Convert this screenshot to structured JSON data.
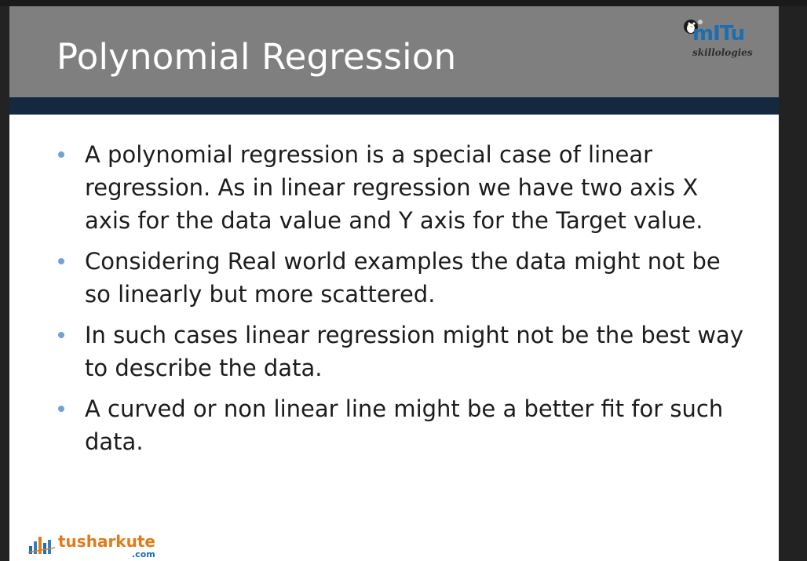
{
  "slide": {
    "title": "Polynomial Regression",
    "bullets": [
      "A polynomial regression is a special case of linear regression. As in linear regression we have two axis X axis for the data value and Y axis for the Target value.",
      "Considering Real world examples the data might not be so linearly but more scattered.",
      "In such cases linear regression might not be the best way to describe the data.",
      "A curved or non linear line might be a better fit for such data."
    ]
  },
  "logos": {
    "mitu": {
      "name": "mITu",
      "tagline": "skillologies",
      "icon": "penguin-icon"
    },
    "tusharkute": {
      "name": "tusharkute",
      "suffix": ".com",
      "icon": "bar-chart-icon"
    }
  },
  "colors": {
    "title_band": "#7f7f7f",
    "dark_band": "#14293f",
    "bullet": "#6fa3d6",
    "tk_orange": "#e07b1a",
    "mitu_blue": "#1a6fb3"
  }
}
